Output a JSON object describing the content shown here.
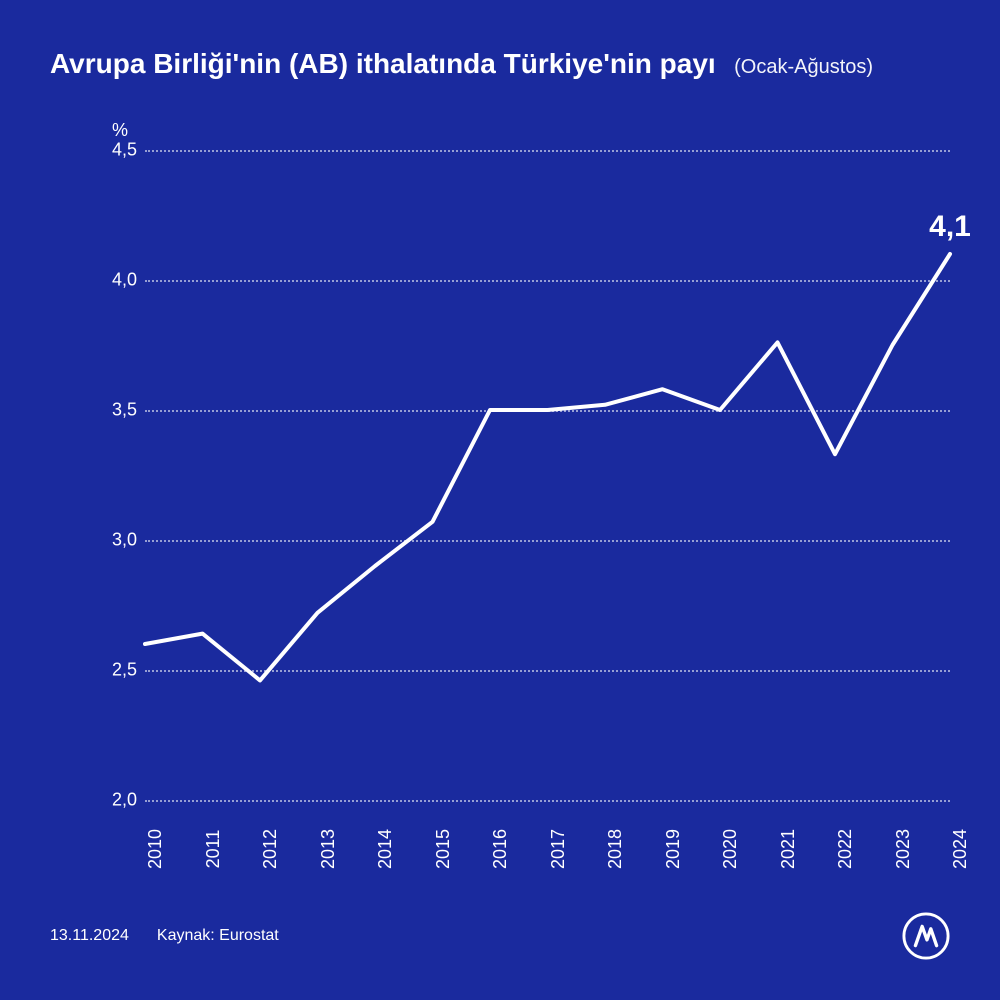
{
  "header": {
    "title": "Avrupa Birliği'nin (AB) ithalatında Türkiye'nin payı",
    "subtitle": "(Ocak-Ağustos)"
  },
  "chart": {
    "type": "line",
    "y_unit": "%",
    "x_categories": [
      "2010",
      "2011",
      "2012",
      "2013",
      "2014",
      "2015",
      "2016",
      "2017",
      "2018",
      "2019",
      "2020",
      "2021",
      "2022",
      "2023",
      "2024"
    ],
    "values": [
      2.6,
      2.64,
      2.46,
      2.72,
      2.9,
      3.07,
      3.5,
      3.5,
      3.52,
      3.58,
      3.5,
      3.76,
      3.33,
      3.75,
      4.1
    ],
    "end_label": "4,1",
    "ylim": [
      2.0,
      4.5
    ],
    "y_ticks": [
      2.0,
      2.5,
      3.0,
      3.5,
      4.0,
      4.5
    ],
    "y_tick_labels": [
      "2,0",
      "2,5",
      "3,0",
      "3,5",
      "4,0",
      "4,5"
    ],
    "line_color": "#ffffff",
    "line_width": 4,
    "grid_color": "rgba(255,255,255,0.55)",
    "background_color": "#1a2a9e",
    "title_fontsize": 28,
    "subtitle_fontsize": 20,
    "tick_fontsize": 18,
    "endlabel_fontsize": 30
  },
  "footer": {
    "date": "13.11.2024",
    "source_label": "Kaynak: Eurostat"
  }
}
